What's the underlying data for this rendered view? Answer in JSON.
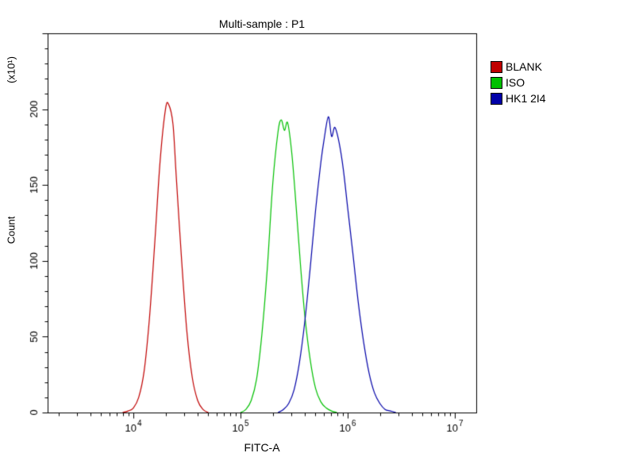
{
  "chart_data": {
    "type": "line",
    "title": "Multi-sample : P1",
    "xlabel": "FITC-A",
    "ylabel": "Count",
    "y_multiplier": "(x10¹)",
    "x_scale": "log10",
    "xlim_log10": [
      3.2,
      7.2
    ],
    "ylim": [
      0,
      250
    ],
    "x_major_tick_exponents": [
      4,
      5,
      6,
      7
    ],
    "y_major_ticks": [
      0,
      50,
      100,
      150,
      200
    ],
    "y_minor_step": 10,
    "legend_position": "top-right",
    "axis_color": "#000000",
    "background_color": "#ffffff",
    "series": [
      {
        "name": "BLANK",
        "color": "#c00000",
        "points_log10x_count": [
          [
            3.9,
            0
          ],
          [
            3.95,
            1
          ],
          [
            4.0,
            3
          ],
          [
            4.05,
            10
          ],
          [
            4.1,
            27
          ],
          [
            4.15,
            62
          ],
          [
            4.2,
            112
          ],
          [
            4.25,
            166
          ],
          [
            4.3,
            200
          ],
          [
            4.33,
            203
          ],
          [
            4.37,
            190
          ],
          [
            4.4,
            156
          ],
          [
            4.45,
            101
          ],
          [
            4.5,
            53
          ],
          [
            4.55,
            23
          ],
          [
            4.6,
            8
          ],
          [
            4.65,
            2
          ],
          [
            4.7,
            0
          ]
        ]
      },
      {
        "name": "ISO",
        "color": "#00c000",
        "points_log10x_count": [
          [
            5.0,
            0
          ],
          [
            5.05,
            2
          ],
          [
            5.1,
            8
          ],
          [
            5.15,
            22
          ],
          [
            5.2,
            52
          ],
          [
            5.25,
            95
          ],
          [
            5.3,
            150
          ],
          [
            5.35,
            185
          ],
          [
            5.38,
            193
          ],
          [
            5.41,
            186
          ],
          [
            5.44,
            191
          ],
          [
            5.48,
            170
          ],
          [
            5.52,
            135
          ],
          [
            5.56,
            97
          ],
          [
            5.6,
            64
          ],
          [
            5.65,
            35
          ],
          [
            5.7,
            16
          ],
          [
            5.75,
            7
          ],
          [
            5.8,
            3
          ],
          [
            5.85,
            1
          ],
          [
            5.9,
            0
          ]
        ]
      },
      {
        "name": "HK1 2I4",
        "color": "#0000a8",
        "points_log10x_count": [
          [
            5.35,
            0
          ],
          [
            5.4,
            2
          ],
          [
            5.45,
            6
          ],
          [
            5.5,
            15
          ],
          [
            5.55,
            33
          ],
          [
            5.6,
            60
          ],
          [
            5.65,
            95
          ],
          [
            5.7,
            133
          ],
          [
            5.75,
            165
          ],
          [
            5.78,
            180
          ],
          [
            5.82,
            195
          ],
          [
            5.85,
            182
          ],
          [
            5.88,
            188
          ],
          [
            5.92,
            178
          ],
          [
            5.96,
            160
          ],
          [
            6.0,
            135
          ],
          [
            6.05,
            104
          ],
          [
            6.1,
            72
          ],
          [
            6.15,
            46
          ],
          [
            6.2,
            26
          ],
          [
            6.25,
            13
          ],
          [
            6.3,
            6
          ],
          [
            6.35,
            2
          ],
          [
            6.4,
            1
          ],
          [
            6.45,
            0
          ]
        ]
      }
    ]
  }
}
